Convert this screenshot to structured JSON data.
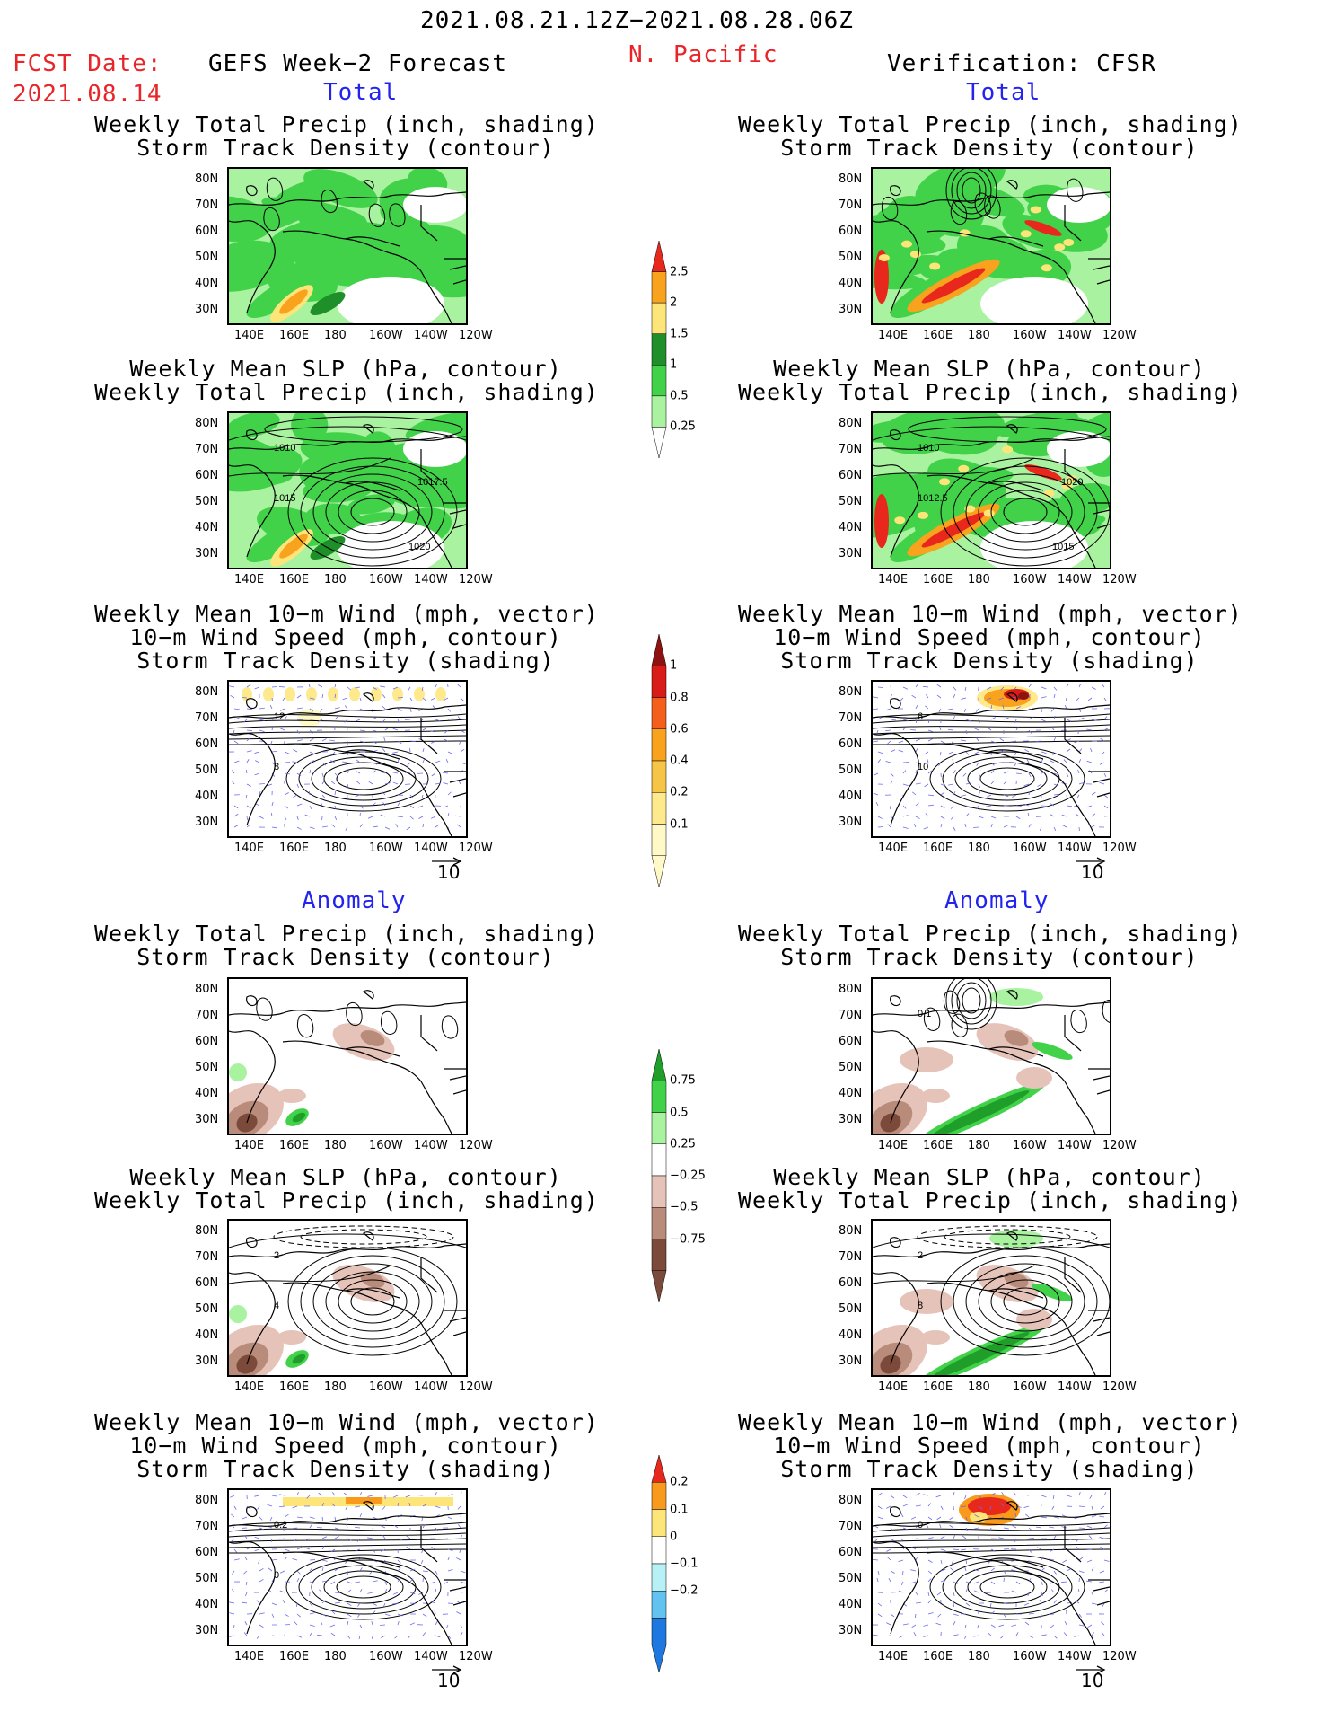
{
  "header": {
    "date_range": "2021.08.21.12Z−2021.08.28.06Z",
    "region": "N. Pacific",
    "fcst_label": "FCST Date:",
    "fcst_date": "2021.08.14",
    "left_title": "GEFS Week−2 Forecast",
    "right_title": "Verification: CFSR",
    "total_label": "Total",
    "anomaly_label": "Anomaly"
  },
  "axes": {
    "lat_labels": [
      "80N",
      "70N",
      "60N",
      "50N",
      "40N",
      "30N"
    ],
    "lon_labels": [
      "140E",
      "160E",
      "180",
      "160W",
      "140W",
      "120W"
    ]
  },
  "panel_titles": {
    "precip_track": [
      "Weekly Total Precip (inch, shading)",
      "Storm Track Density (contour)"
    ],
    "slp_precip": [
      "Weekly Mean SLP (hPa, contour)",
      "Weekly Total Precip (inch, shading)"
    ],
    "wind": [
      "Weekly Mean 10−m Wind (mph, vector)",
      "10−m Wind Speed (mph, contour)",
      "Storm Track Density (shading)"
    ]
  },
  "contour_labels": {
    "fcst_slp_total": [
      "1010",
      "1015",
      "1020",
      "1017.5"
    ],
    "obs_slp_total": [
      "1010",
      "1012.5",
      "1015",
      "1020"
    ],
    "fcst_wind_total": [
      "12",
      "8"
    ],
    "obs_wind_total": [
      "6",
      "10"
    ],
    "fcst_slp_anom": [
      "2",
      "4"
    ],
    "obs_slp_anom": [
      "2",
      "8"
    ],
    "fcst_wind_anom": [
      "0.2",
      "0"
    ],
    "obs_wind_anom": [
      "0"
    ],
    "obs_precip_anom": [
      "0.1"
    ]
  },
  "vector_ref": "10",
  "colorbars": {
    "precip_total": {
      "labels": [
        "2.5",
        "2",
        "1.5",
        "1",
        "0.5",
        "0.25"
      ],
      "colors": [
        "#e8281c",
        "#f9a21d",
        "#fee57a",
        "#1f8f2a",
        "#42d24a",
        "#a9f2a0"
      ]
    },
    "track_total": {
      "labels": [
        "1",
        "0.8",
        "0.6",
        "0.4",
        "0.2",
        "0.1"
      ],
      "colors": [
        "#8f1212",
        "#d91c17",
        "#f4601c",
        "#f9a21d",
        "#f6c446",
        "#fee98c",
        "#fff9c8"
      ]
    },
    "precip_anom": {
      "labels": [
        "0.75",
        "0.5",
        "0.25",
        "−0.25",
        "−0.5",
        "−0.75"
      ],
      "colors": [
        "#1f9e2a",
        "#42d24a",
        "#a9f2a0",
        "#ffffff",
        "#e6c3b8",
        "#b98b7b",
        "#7c4a3a"
      ]
    },
    "track_anom": {
      "labels": [
        "0.2",
        "0.1",
        "0",
        "−0.1",
        "−0.2"
      ],
      "colors": [
        "#e8281c",
        "#f99a1d",
        "#fee57a",
        "#ffffff",
        "#b7f0f5",
        "#62c3f0",
        "#1f78e0"
      ]
    }
  },
  "colors": {
    "title_red": "#e8262a",
    "label_blue": "#2323ee",
    "vector_blue": "#6a6af0"
  }
}
